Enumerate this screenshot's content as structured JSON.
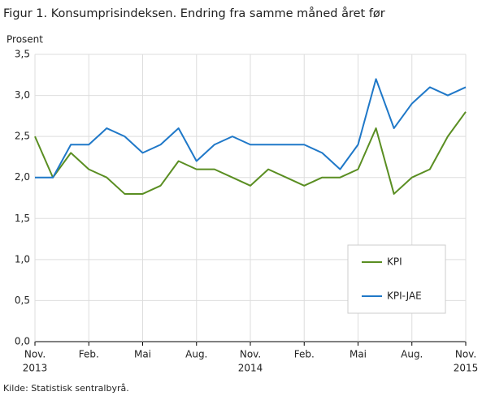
{
  "chart_data": {
    "type": "line",
    "title": "Figur 1. Konsumprisindeksen. Endring fra samme måned året før",
    "y_label": "Prosent",
    "source": "Kilde: Statistisk sentralbyrå.",
    "categories": [
      "Nov.",
      null,
      null,
      "Feb.",
      null,
      null,
      "Mai",
      null,
      null,
      "Aug.",
      null,
      null,
      "Nov.",
      null,
      null,
      "Feb.",
      null,
      null,
      "Mai",
      null,
      null,
      "Aug.",
      null,
      null,
      "Nov."
    ],
    "category_years": [
      "2013",
      null,
      null,
      null,
      null,
      null,
      null,
      null,
      null,
      null,
      null,
      null,
      "2014",
      null,
      null,
      null,
      null,
      null,
      null,
      null,
      null,
      null,
      null,
      null,
      "2015"
    ],
    "series": [
      {
        "name": "KPI",
        "color": "#5a8e22",
        "values": [
          2.5,
          2.0,
          2.3,
          2.1,
          2.0,
          1.8,
          1.8,
          1.9,
          2.2,
          2.1,
          2.1,
          2.0,
          1.9,
          2.1,
          2.0,
          1.9,
          2.0,
          2.0,
          2.1,
          2.6,
          1.8,
          2.0,
          2.1,
          2.5,
          2.8
        ]
      },
      {
        "name": "KPI-JAE",
        "color": "#1f78c8",
        "values": [
          2.0,
          2.0,
          2.4,
          2.4,
          2.6,
          2.5,
          2.3,
          2.4,
          2.6,
          2.2,
          2.4,
          2.5,
          2.4,
          2.4,
          2.4,
          2.4,
          2.3,
          2.1,
          2.4,
          3.2,
          2.6,
          2.9,
          3.1,
          3.0,
          3.1
        ]
      }
    ],
    "ylim": [
      0,
      3.5
    ],
    "yticks": [
      {
        "value": 0,
        "label": "0,0"
      },
      {
        "value": 0.5,
        "label": "0,5"
      },
      {
        "value": 1,
        "label": "1,0"
      },
      {
        "value": 1.5,
        "label": "1,5"
      },
      {
        "value": 2,
        "label": "2,0"
      },
      {
        "value": 2.5,
        "label": "2,5"
      },
      {
        "value": 3,
        "label": "3,0"
      },
      {
        "value": 3.5,
        "label": "3,5"
      }
    ],
    "grid": true
  }
}
